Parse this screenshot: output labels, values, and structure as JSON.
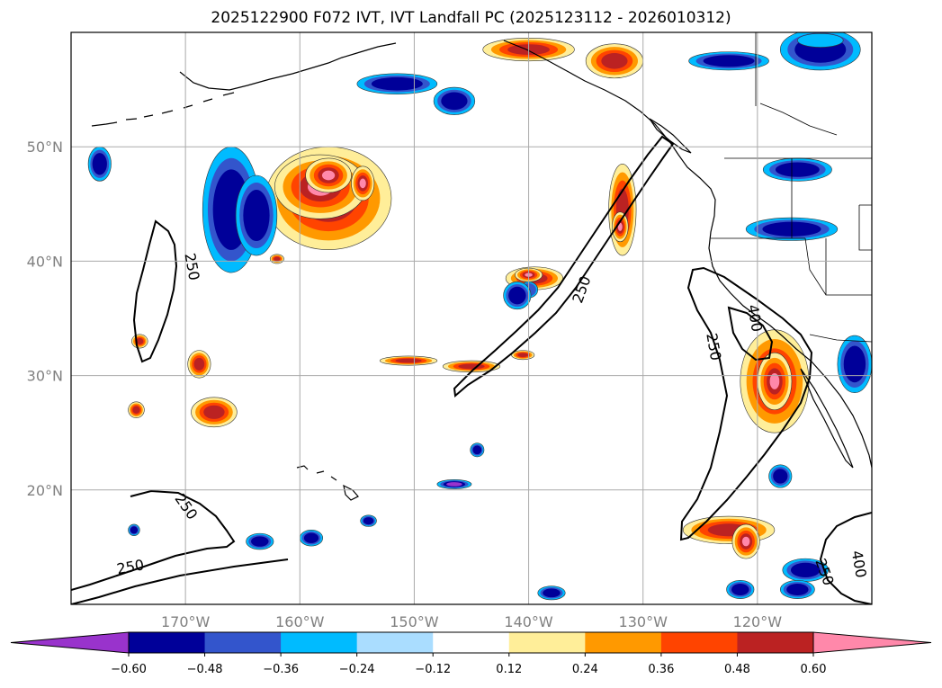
{
  "title": "2025122900 F072 IVT, IVT Landfall PC (2025123112 - 2026010312)",
  "map": {
    "lon_range": [
      -180,
      -110
    ],
    "lat_range": [
      10,
      60
    ],
    "lat_ticks": [
      {
        "value": 50,
        "label": "50°N"
      },
      {
        "value": 40,
        "label": "40°N"
      },
      {
        "value": 30,
        "label": "30°N"
      },
      {
        "value": 20,
        "label": "20°N"
      }
    ],
    "lon_ticks": [
      {
        "value": -170,
        "label": "170°W"
      },
      {
        "value": -160,
        "label": "160°W"
      },
      {
        "value": -150,
        "label": "150°W"
      },
      {
        "value": -140,
        "label": "140°W"
      },
      {
        "value": -130,
        "label": "130°W"
      },
      {
        "value": -120,
        "label": "120°W"
      }
    ],
    "grid": true
  },
  "contour_labels": [
    {
      "text": "250",
      "lon": -169.5,
      "lat": 39.5,
      "angle": 80
    },
    {
      "text": "250",
      "lon": -135.3,
      "lat": 37.5,
      "angle": -70
    },
    {
      "text": "250",
      "lon": -123.9,
      "lat": 32.5,
      "angle": 80
    },
    {
      "text": "400",
      "lon": -120.3,
      "lat": 35.0,
      "angle": 80
    },
    {
      "text": "250",
      "lon": -170.0,
      "lat": 18.5,
      "angle": 55
    },
    {
      "text": "250",
      "lon": -174.8,
      "lat": 13.2,
      "angle": -10
    },
    {
      "text": "250",
      "lon": -114.2,
      "lat": 12.8,
      "angle": 70
    },
    {
      "text": "400",
      "lon": -111.2,
      "lat": 13.5,
      "angle": 80
    }
  ],
  "colorbar": {
    "levels": [
      "−0.60",
      "−0.48",
      "−0.36",
      "−0.24",
      "−0.12",
      "0.12",
      "0.24",
      "0.36",
      "0.48",
      "0.60"
    ],
    "colors": [
      "#9933cc",
      "#000099",
      "#3355cc",
      "#00bbff",
      "#aaddff",
      "#ffffff",
      "#ffee99",
      "#ff9900",
      "#ff4400",
      "#bb2222",
      "#ff88aa"
    ],
    "extend": "both"
  },
  "regions": {
    "positive": [
      {
        "lon": -157.5,
        "lat": 45.5,
        "rx": 5.5,
        "ry": 4.5,
        "level": 3
      },
      {
        "lon": -158.2,
        "lat": 46.5,
        "rx": 4.0,
        "ry": 2.8,
        "level": 4
      },
      {
        "lon": -157.5,
        "lat": 47.5,
        "rx": 2.0,
        "ry": 1.5,
        "level": 5
      },
      {
        "lon": -154.5,
        "lat": 46.8,
        "rx": 1.0,
        "ry": 1.5,
        "level": 5
      },
      {
        "lon": -139.5,
        "lat": 38.5,
        "rx": 2.5,
        "ry": 1.0,
        "level": 3
      },
      {
        "lon": -140.0,
        "lat": 38.8,
        "rx": 1.2,
        "ry": 0.6,
        "level": 4
      },
      {
        "lon": -131.8,
        "lat": 44.5,
        "rx": 1.2,
        "ry": 4.0,
        "level": 3
      },
      {
        "lon": -132.0,
        "lat": 43.0,
        "rx": 0.7,
        "ry": 1.3,
        "level": 5
      },
      {
        "lon": -145.0,
        "lat": 30.8,
        "rx": 2.5,
        "ry": 0.5,
        "level": 3
      },
      {
        "lon": -150.5,
        "lat": 31.3,
        "rx": 2.5,
        "ry": 0.4,
        "level": 3
      },
      {
        "lon": -140.5,
        "lat": 31.8,
        "rx": 1.0,
        "ry": 0.4,
        "level": 3
      },
      {
        "lon": -166.0,
        "lat": 43.5,
        "rx": 0.5,
        "ry": 1.2,
        "level": 3
      },
      {
        "lon": -174.0,
        "lat": 33.0,
        "rx": 0.7,
        "ry": 0.6,
        "level": 3
      },
      {
        "lon": -168.8,
        "lat": 31.0,
        "rx": 1.0,
        "ry": 1.2,
        "level": 3
      },
      {
        "lon": -174.3,
        "lat": 27.0,
        "rx": 0.7,
        "ry": 0.7,
        "level": 3
      },
      {
        "lon": -167.5,
        "lat": 26.8,
        "rx": 2.0,
        "ry": 1.3,
        "level": 3
      },
      {
        "lon": -118.5,
        "lat": 29.5,
        "rx": 3.0,
        "ry": 4.5,
        "level": 3
      },
      {
        "lon": -118.5,
        "lat": 29.5,
        "rx": 1.5,
        "ry": 2.5,
        "level": 4
      },
      {
        "lon": -122.5,
        "lat": 16.5,
        "rx": 4.0,
        "ry": 1.2,
        "level": 3
      },
      {
        "lon": -121.0,
        "lat": 15.5,
        "rx": 1.2,
        "ry": 1.5,
        "level": 4
      },
      {
        "lon": -140.0,
        "lat": 58.5,
        "rx": 4.0,
        "ry": 1.0,
        "level": 3
      },
      {
        "lon": -132.5,
        "lat": 57.5,
        "rx": 2.5,
        "ry": 1.5,
        "level": 3
      },
      {
        "lon": -162.0,
        "lat": 40.2,
        "rx": 0.6,
        "ry": 0.4,
        "level": 3
      }
    ],
    "negative": [
      {
        "lon": -166.0,
        "lat": 44.5,
        "rx": 2.5,
        "ry": 5.5,
        "level": 2
      },
      {
        "lon": -163.8,
        "lat": 44.0,
        "rx": 1.8,
        "ry": 3.5,
        "level": 2
      },
      {
        "lon": -177.5,
        "lat": 48.5,
        "rx": 1.0,
        "ry": 1.5,
        "level": 2
      },
      {
        "lon": -140.0,
        "lat": 37.5,
        "rx": 0.8,
        "ry": 0.7,
        "level": 1
      },
      {
        "lon": -141.0,
        "lat": 37.0,
        "rx": 1.2,
        "ry": 1.2,
        "level": 2
      },
      {
        "lon": -146.5,
        "lat": 54.0,
        "rx": 1.8,
        "ry": 1.2,
        "level": 2
      },
      {
        "lon": -151.5,
        "lat": 55.5,
        "rx": 3.5,
        "ry": 0.9,
        "level": 2
      },
      {
        "lon": -122.5,
        "lat": 57.5,
        "rx": 3.5,
        "ry": 0.8,
        "level": 2
      },
      {
        "lon": -114.5,
        "lat": 58.5,
        "rx": 3.5,
        "ry": 1.8,
        "level": 2
      },
      {
        "lon": -114.5,
        "lat": 59.3,
        "rx": 2.0,
        "ry": 0.6,
        "level": 0
      },
      {
        "lon": -116.5,
        "lat": 48.0,
        "rx": 3.0,
        "ry": 1.0,
        "level": 2
      },
      {
        "lon": -117.0,
        "lat": 42.8,
        "rx": 4.0,
        "ry": 1.0,
        "level": 2
      },
      {
        "lon": -115.8,
        "lat": 13.0,
        "rx": 2.0,
        "ry": 1.0,
        "level": 2
      },
      {
        "lon": -121.5,
        "lat": 11.3,
        "rx": 1.2,
        "ry": 0.8,
        "level": 2
      },
      {
        "lon": -116.5,
        "lat": 11.3,
        "rx": 1.5,
        "ry": 0.8,
        "level": 2
      },
      {
        "lon": -159.0,
        "lat": 15.8,
        "rx": 1.0,
        "ry": 0.7,
        "level": 2
      },
      {
        "lon": -163.5,
        "lat": 15.5,
        "rx": 1.2,
        "ry": 0.7,
        "level": 2
      },
      {
        "lon": -144.5,
        "lat": 23.5,
        "rx": 0.6,
        "ry": 0.6,
        "level": 2
      },
      {
        "lon": -138.0,
        "lat": 11.0,
        "rx": 1.2,
        "ry": 0.6,
        "level": 2
      },
      {
        "lon": -146.5,
        "lat": 20.5,
        "rx": 1.5,
        "ry": 0.4,
        "level": 3
      },
      {
        "lon": -154.0,
        "lat": 17.3,
        "rx": 0.7,
        "ry": 0.5,
        "level": 2
      },
      {
        "lon": -174.5,
        "lat": 16.5,
        "rx": 0.5,
        "ry": 0.5,
        "level": 2
      },
      {
        "lon": -111.5,
        "lat": 31.0,
        "rx": 1.5,
        "ry": 2.5,
        "level": 2
      },
      {
        "lon": -118.0,
        "lat": 21.2,
        "rx": 1.0,
        "ry": 1.0,
        "level": 2
      }
    ]
  }
}
